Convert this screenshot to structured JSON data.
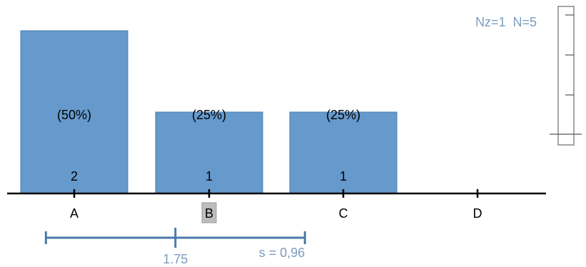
{
  "chart_data": {
    "type": "bar",
    "categories": [
      "A",
      "B",
      "C",
      "D"
    ],
    "values": [
      2,
      1,
      1,
      0
    ],
    "percent_labels": [
      "(50%)",
      "(25%)",
      "(25%)",
      ""
    ],
    "count_labels": [
      "2",
      "1",
      "1",
      ""
    ],
    "highlighted_category": "B",
    "mean": 1.75,
    "mean_label": "1.75",
    "sd": 0.96,
    "sd_label": "s = 0,96",
    "nz_label": "Nz=1",
    "n_label": "N=5",
    "ylim": [
      0,
      2
    ]
  },
  "colors": {
    "bar": "#6699cc",
    "stat_text": "#7a9cbf",
    "mean_line": "#4a7aaa",
    "highlight": "#bdbdbd"
  }
}
